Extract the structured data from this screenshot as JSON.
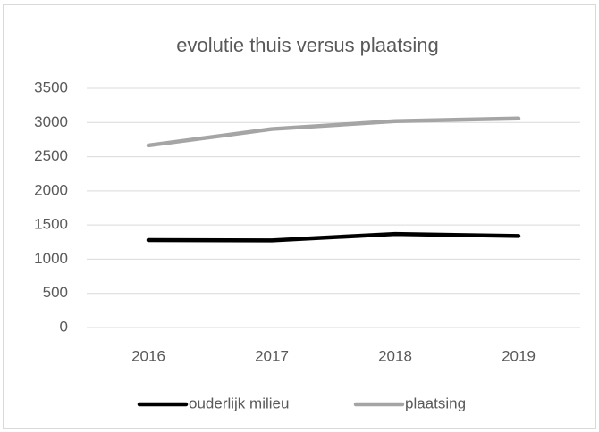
{
  "chart_data": {
    "type": "line",
    "title": "evolutie thuis versus plaatsing",
    "categories": [
      "2016",
      "2017",
      "2018",
      "2019"
    ],
    "series": [
      {
        "name": "ouderlijk milieu",
        "color": "#000000",
        "values": [
          1280,
          1275,
          1370,
          1340
        ]
      },
      {
        "name": "plaatsing",
        "color": "#a5a5a5",
        "values": [
          2665,
          2905,
          3020,
          3060
        ]
      }
    ],
    "ylim": [
      0,
      3500
    ],
    "yticks": [
      0,
      500,
      1000,
      1500,
      2000,
      2500,
      3000,
      3500
    ],
    "grid": true,
    "legend": "bottom"
  }
}
